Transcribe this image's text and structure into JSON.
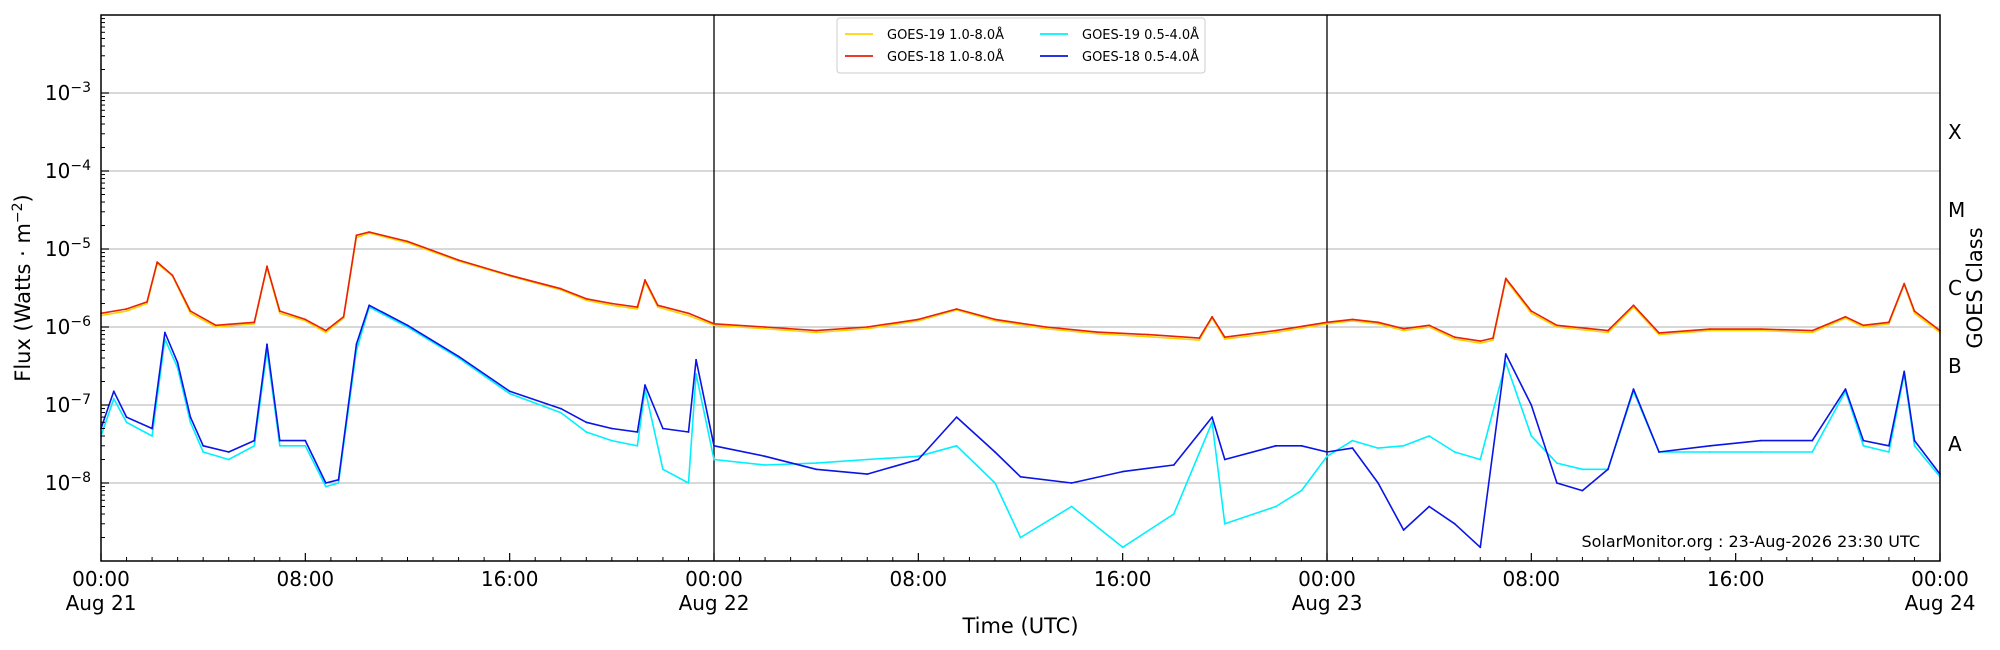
{
  "chart_data": {
    "type": "line",
    "xlabel": "Time (UTC)",
    "ylabel_main": "Flux (Watts · m",
    "ylabel_sup": "−2",
    "ylabel_close": ")",
    "ylabel_right": "GOES Class",
    "y_scale": "log",
    "ylim": [
      1e-09,
      0.01
    ],
    "xlim": [
      "2026-08-21T00:00",
      "2026-08-24T00:00"
    ],
    "grid": "horizontal",
    "legend_position": "top-center",
    "credit": "SolarMonitor.org : 23-Aug-2026 23:30 UTC",
    "y_ticks": [
      {
        "value": 1e-08,
        "base": "10",
        "exp": "−8"
      },
      {
        "value": 1e-07,
        "base": "10",
        "exp": "−7"
      },
      {
        "value": 1e-06,
        "base": "10",
        "exp": "−6"
      },
      {
        "value": 1e-05,
        "base": "10",
        "exp": "−5"
      },
      {
        "value": 0.0001,
        "base": "10",
        "exp": "−4"
      },
      {
        "value": 0.001,
        "base": "10",
        "exp": "−3"
      }
    ],
    "goes_classes": [
      {
        "label": "A",
        "value": 3.162e-08
      },
      {
        "label": "B",
        "value": 3.162e-07
      },
      {
        "label": "C",
        "value": 3.162e-06
      },
      {
        "label": "M",
        "value": 3.162e-05
      },
      {
        "label": "X",
        "value": 0.0003162
      }
    ],
    "x_ticks": [
      {
        "hour": 0,
        "time": "00:00",
        "date": "Aug 21"
      },
      {
        "hour": 8,
        "time": "08:00",
        "date": ""
      },
      {
        "hour": 16,
        "time": "16:00",
        "date": ""
      },
      {
        "hour": 24,
        "time": "00:00",
        "date": "Aug 22"
      },
      {
        "hour": 32,
        "time": "08:00",
        "date": ""
      },
      {
        "hour": 40,
        "time": "16:00",
        "date": ""
      },
      {
        "hour": 48,
        "time": "00:00",
        "date": "Aug 23"
      },
      {
        "hour": 56,
        "time": "08:00",
        "date": ""
      },
      {
        "hour": 64,
        "time": "16:00",
        "date": ""
      },
      {
        "hour": 72,
        "time": "00:00",
        "date": "Aug 24"
      }
    ],
    "day_boundaries": [
      "2026-08-22T00:00",
      "2026-08-23T00:00"
    ],
    "series": [
      {
        "name": "GOES-19 1.0-8.0Å",
        "color": "#ffd400",
        "points": [
          [
            0,
            1.4e-06
          ],
          [
            1,
            1.6e-06
          ],
          [
            1.8,
            2e-06
          ],
          [
            2.2,
            6.5e-06
          ],
          [
            2.8,
            4.5e-06
          ],
          [
            3.5,
            1.5e-06
          ],
          [
            4.5,
            1e-06
          ],
          [
            6,
            1.1e-06
          ],
          [
            6.5,
            5.8e-06
          ],
          [
            7,
            1.5e-06
          ],
          [
            8,
            1.2e-06
          ],
          [
            8.8,
            8.5e-07
          ],
          [
            9.5,
            1.3e-06
          ],
          [
            10,
            1.4e-05
          ],
          [
            10.5,
            1.6e-05
          ],
          [
            12,
            1.2e-05
          ],
          [
            14,
            7e-06
          ],
          [
            16,
            4.5e-06
          ],
          [
            18,
            3e-06
          ],
          [
            19,
            2.2e-06
          ],
          [
            20,
            1.9e-06
          ],
          [
            21,
            1.7e-06
          ],
          [
            21.3,
            3.8e-06
          ],
          [
            21.8,
            1.8e-06
          ],
          [
            23,
            1.4e-06
          ],
          [
            24,
            1.05e-06
          ],
          [
            26,
            9.5e-07
          ],
          [
            28,
            8.5e-07
          ],
          [
            30,
            9.5e-07
          ],
          [
            32,
            1.2e-06
          ],
          [
            33.5,
            1.65e-06
          ],
          [
            35,
            1.2e-06
          ],
          [
            37,
            9.5e-07
          ],
          [
            39,
            8.2e-07
          ],
          [
            41,
            7.5e-07
          ],
          [
            43,
            6.8e-07
          ],
          [
            43.5,
            1.3e-06
          ],
          [
            44,
            7e-07
          ],
          [
            46,
            8.5e-07
          ],
          [
            48,
            1.1e-06
          ],
          [
            49,
            1.2e-06
          ],
          [
            50,
            1.1e-06
          ],
          [
            51,
            9e-07
          ],
          [
            52,
            1e-06
          ],
          [
            53,
            7e-07
          ],
          [
            54,
            6.2e-07
          ],
          [
            54.5,
            6.8e-07
          ],
          [
            55,
            4e-06
          ],
          [
            56,
            1.5e-06
          ],
          [
            57,
            1e-06
          ],
          [
            59,
            8.5e-07
          ],
          [
            60,
            1.8e-06
          ],
          [
            61,
            8e-07
          ],
          [
            63,
            9e-07
          ],
          [
            65,
            9e-07
          ],
          [
            67,
            8.5e-07
          ],
          [
            68.3,
            1.3e-06
          ],
          [
            69,
            1e-06
          ],
          [
            70,
            1.1e-06
          ],
          [
            70.6,
            3.5e-06
          ],
          [
            71,
            1.5e-06
          ],
          [
            72,
            8.5e-07
          ]
        ]
      },
      {
        "name": "GOES-18 1.0-8.0Å",
        "color": "#e8200c",
        "points": [
          [
            0,
            1.5e-06
          ],
          [
            1,
            1.7e-06
          ],
          [
            1.8,
            2.1e-06
          ],
          [
            2.2,
            6.8e-06
          ],
          [
            2.8,
            4.6e-06
          ],
          [
            3.5,
            1.6e-06
          ],
          [
            4.5,
            1.05e-06
          ],
          [
            6,
            1.15e-06
          ],
          [
            6.5,
            6e-06
          ],
          [
            7,
            1.6e-06
          ],
          [
            8,
            1.25e-06
          ],
          [
            8.8,
            9e-07
          ],
          [
            9.5,
            1.35e-06
          ],
          [
            10,
            1.5e-05
          ],
          [
            10.5,
            1.65e-05
          ],
          [
            12,
            1.25e-05
          ],
          [
            14,
            7.2e-06
          ],
          [
            16,
            4.6e-06
          ],
          [
            18,
            3.1e-06
          ],
          [
            19,
            2.3e-06
          ],
          [
            20,
            2e-06
          ],
          [
            21,
            1.8e-06
          ],
          [
            21.3,
            4e-06
          ],
          [
            21.8,
            1.9e-06
          ],
          [
            23,
            1.5e-06
          ],
          [
            24,
            1.1e-06
          ],
          [
            26,
            1e-06
          ],
          [
            28,
            9e-07
          ],
          [
            30,
            1e-06
          ],
          [
            32,
            1.25e-06
          ],
          [
            33.5,
            1.7e-06
          ],
          [
            35,
            1.25e-06
          ],
          [
            37,
            1e-06
          ],
          [
            39,
            8.6e-07
          ],
          [
            41,
            8e-07
          ],
          [
            43,
            7.2e-07
          ],
          [
            43.5,
            1.35e-06
          ],
          [
            44,
            7.4e-07
          ],
          [
            46,
            9e-07
          ],
          [
            48,
            1.15e-06
          ],
          [
            49,
            1.25e-06
          ],
          [
            50,
            1.15e-06
          ],
          [
            51,
            9.5e-07
          ],
          [
            52,
            1.05e-06
          ],
          [
            53,
            7.4e-07
          ],
          [
            54,
            6.6e-07
          ],
          [
            54.5,
            7.2e-07
          ],
          [
            55,
            4.2e-06
          ],
          [
            56,
            1.6e-06
          ],
          [
            57,
            1.05e-06
          ],
          [
            59,
            9e-07
          ],
          [
            60,
            1.9e-06
          ],
          [
            61,
            8.4e-07
          ],
          [
            63,
            9.4e-07
          ],
          [
            65,
            9.4e-07
          ],
          [
            67,
            9e-07
          ],
          [
            68.3,
            1.35e-06
          ],
          [
            69,
            1.05e-06
          ],
          [
            70,
            1.15e-06
          ],
          [
            70.6,
            3.6e-06
          ],
          [
            71,
            1.6e-06
          ],
          [
            72,
            9e-07
          ]
        ]
      },
      {
        "name": "GOES-19 0.5-4.0Å",
        "color": "#00f0ff",
        "points": [
          [
            0,
            4e-08
          ],
          [
            0.5,
            1.2e-07
          ],
          [
            1,
            6e-08
          ],
          [
            2,
            4e-08
          ],
          [
            2.5,
            7e-07
          ],
          [
            3,
            3e-07
          ],
          [
            3.5,
            6e-08
          ],
          [
            4,
            2.5e-08
          ],
          [
            5,
            2e-08
          ],
          [
            6,
            3e-08
          ],
          [
            6.5,
            5e-07
          ],
          [
            7,
            3e-08
          ],
          [
            8,
            3e-08
          ],
          [
            8.8,
            9e-09
          ],
          [
            9.3,
            1e-08
          ],
          [
            10,
            5e-07
          ],
          [
            10.5,
            1.8e-06
          ],
          [
            12,
            1e-06
          ],
          [
            14,
            4e-07
          ],
          [
            16,
            1.4e-07
          ],
          [
            18,
            8e-08
          ],
          [
            19,
            4.5e-08
          ],
          [
            20,
            3.5e-08
          ],
          [
            21,
            3e-08
          ],
          [
            21.3,
            1.6e-07
          ],
          [
            22,
            1.5e-08
          ],
          [
            23,
            1e-08
          ],
          [
            23.3,
            2.5e-07
          ],
          [
            24,
            2e-08
          ],
          [
            26,
            1.7e-08
          ],
          [
            28,
            1.8e-08
          ],
          [
            30,
            2e-08
          ],
          [
            32,
            2.2e-08
          ],
          [
            33.5,
            3e-08
          ],
          [
            35,
            1e-08
          ],
          [
            36,
            2e-09
          ],
          [
            38,
            5e-09
          ],
          [
            40,
            1.5e-09
          ],
          [
            42,
            4e-09
          ],
          [
            43.5,
            6e-08
          ],
          [
            44,
            3e-09
          ],
          [
            46,
            5e-09
          ],
          [
            47,
            8e-09
          ],
          [
            48,
            2.2e-08
          ],
          [
            49,
            3.5e-08
          ],
          [
            50,
            2.8e-08
          ],
          [
            51,
            3e-08
          ],
          [
            52,
            4e-08
          ],
          [
            53,
            2.5e-08
          ],
          [
            54,
            2e-08
          ],
          [
            55,
            3.5e-07
          ],
          [
            56,
            4e-08
          ],
          [
            57,
            1.8e-08
          ],
          [
            58,
            1.5e-08
          ],
          [
            59,
            1.5e-08
          ],
          [
            60,
            1.5e-07
          ],
          [
            61,
            2.5e-08
          ],
          [
            63,
            2.5e-08
          ],
          [
            65,
            2.5e-08
          ],
          [
            67,
            2.5e-08
          ],
          [
            68.3,
            1.5e-07
          ],
          [
            69,
            3e-08
          ],
          [
            70,
            2.5e-08
          ],
          [
            70.6,
            2.5e-07
          ],
          [
            71,
            3e-08
          ],
          [
            72,
            1.2e-08
          ]
        ]
      },
      {
        "name": "GOES-18 0.5-4.0Å",
        "color": "#0a14e6",
        "points": [
          [
            0,
            5e-08
          ],
          [
            0.5,
            1.5e-07
          ],
          [
            1,
            7e-08
          ],
          [
            2,
            5e-08
          ],
          [
            2.5,
            8.5e-07
          ],
          [
            3,
            3.5e-07
          ],
          [
            3.5,
            7e-08
          ],
          [
            4,
            3e-08
          ],
          [
            5,
            2.5e-08
          ],
          [
            6,
            3.5e-08
          ],
          [
            6.5,
            6e-07
          ],
          [
            7,
            3.5e-08
          ],
          [
            8,
            3.5e-08
          ],
          [
            8.8,
            1e-08
          ],
          [
            9.3,
            1.1e-08
          ],
          [
            10,
            6e-07
          ],
          [
            10.5,
            1.9e-06
          ],
          [
            12,
            1.05e-06
          ],
          [
            14,
            4.2e-07
          ],
          [
            16,
            1.5e-07
          ],
          [
            18,
            9e-08
          ],
          [
            19,
            6e-08
          ],
          [
            20,
            5e-08
          ],
          [
            21,
            4.5e-08
          ],
          [
            21.3,
            1.8e-07
          ],
          [
            22,
            5e-08
          ],
          [
            23,
            4.5e-08
          ],
          [
            23.3,
            3.8e-07
          ],
          [
            24,
            3e-08
          ],
          [
            26,
            2.2e-08
          ],
          [
            28,
            1.5e-08
          ],
          [
            30,
            1.3e-08
          ],
          [
            32,
            2e-08
          ],
          [
            33.5,
            7e-08
          ],
          [
            35,
            2.5e-08
          ],
          [
            36,
            1.2e-08
          ],
          [
            38,
            1e-08
          ],
          [
            40,
            1.4e-08
          ],
          [
            42,
            1.7e-08
          ],
          [
            43.5,
            7e-08
          ],
          [
            44,
            2e-08
          ],
          [
            46,
            3e-08
          ],
          [
            47,
            3e-08
          ],
          [
            48,
            2.5e-08
          ],
          [
            49,
            2.8e-08
          ],
          [
            50,
            1e-08
          ],
          [
            51,
            2.5e-09
          ],
          [
            52,
            5e-09
          ],
          [
            53,
            3e-09
          ],
          [
            54,
            1.5e-09
          ],
          [
            55,
            4.5e-07
          ],
          [
            56,
            1e-07
          ],
          [
            57,
            1e-08
          ],
          [
            58,
            8e-09
          ],
          [
            59,
            1.5e-08
          ],
          [
            60,
            1.6e-07
          ],
          [
            61,
            2.5e-08
          ],
          [
            63,
            3e-08
          ],
          [
            65,
            3.5e-08
          ],
          [
            67,
            3.5e-08
          ],
          [
            68.3,
            1.6e-07
          ],
          [
            69,
            3.5e-08
          ],
          [
            70,
            3e-08
          ],
          [
            70.6,
            2.7e-07
          ],
          [
            71,
            3.5e-08
          ],
          [
            72,
            1.3e-08
          ]
        ]
      }
    ]
  }
}
